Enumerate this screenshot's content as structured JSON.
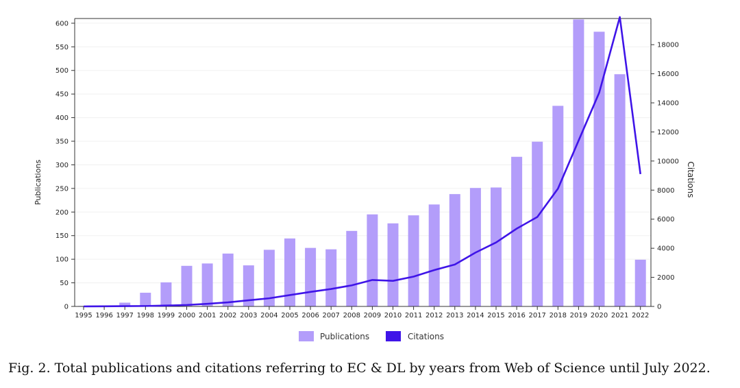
{
  "chart_data": {
    "type": "bar+line",
    "categories": [
      "1995",
      "1996",
      "1997",
      "1998",
      "1999",
      "2000",
      "2001",
      "2002",
      "2003",
      "2004",
      "2005",
      "2006",
      "2007",
      "2008",
      "2009",
      "2010",
      "2011",
      "2012",
      "2013",
      "2014",
      "2015",
      "2016",
      "2017",
      "2018",
      "2019",
      "2020",
      "2021",
      "2022"
    ],
    "series": [
      {
        "name": "Publications",
        "kind": "bar",
        "axis": "left",
        "color": "#b39dfa",
        "values": [
          1,
          2,
          8,
          29,
          51,
          86,
          91,
          112,
          87,
          120,
          144,
          124,
          121,
          160,
          195,
          176,
          193,
          216,
          238,
          251,
          252,
          317,
          349,
          425,
          608,
          582,
          492,
          99
        ]
      },
      {
        "name": "Citations",
        "kind": "line",
        "axis": "right",
        "color": "#3f14e8",
        "values": [
          0,
          10,
          20,
          30,
          60,
          100,
          180,
          280,
          420,
          560,
          780,
          1000,
          1200,
          1450,
          1820,
          1760,
          2050,
          2500,
          2880,
          3700,
          4400,
          5350,
          6150,
          8100,
          11400,
          14700,
          19900,
          9100
        ]
      }
    ],
    "ylabel": "Publications",
    "y2label": "Citations",
    "ylim": [
      0,
      610
    ],
    "y2lim": [
      0,
      19800
    ],
    "yticks": [
      "0",
      "50",
      "100",
      "150",
      "200",
      "250",
      "300",
      "350",
      "400",
      "450",
      "500",
      "550",
      "600"
    ],
    "y2ticks": [
      "0",
      "2000",
      "4000",
      "6000",
      "8000",
      "10000",
      "12000",
      "14000",
      "16000",
      "18000"
    ],
    "legend": [
      "Publications",
      "Citations"
    ],
    "legend_position": "bottom-center"
  },
  "caption": "Fig. 2.  Total publications and citations referring to EC & DL by years from Web of Science until July 2022."
}
